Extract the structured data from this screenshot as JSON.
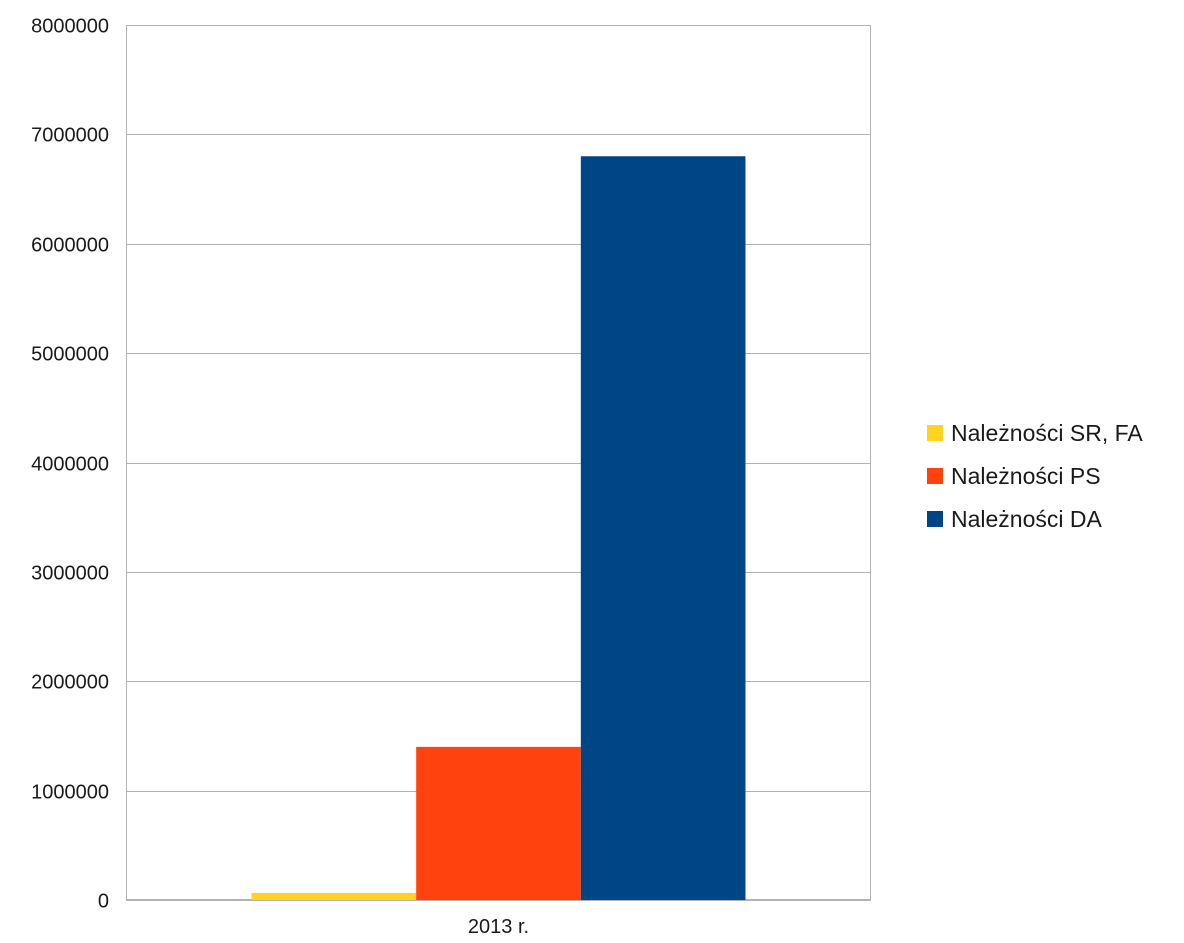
{
  "chart_data": {
    "type": "bar",
    "categories": [
      "2013 r."
    ],
    "series": [
      {
        "name": "Należności SR, FA",
        "values": [
          65000
        ],
        "color": "#FFD320"
      },
      {
        "name": "Należności PS",
        "values": [
          1400000
        ],
        "color": "#FF420E"
      },
      {
        "name": "Należności DA",
        "values": [
          6800000
        ],
        "color": "#004586"
      }
    ],
    "ylim": [
      0,
      8000000
    ],
    "yticks": [
      0,
      1000000,
      2000000,
      3000000,
      4000000,
      5000000,
      6000000,
      7000000,
      8000000
    ],
    "ytick_labels": [
      "0",
      "1000000",
      "2000000",
      "3000000",
      "4000000",
      "5000000",
      "6000000",
      "7000000",
      "8000000"
    ],
    "grid": true,
    "legend_position": "right"
  }
}
